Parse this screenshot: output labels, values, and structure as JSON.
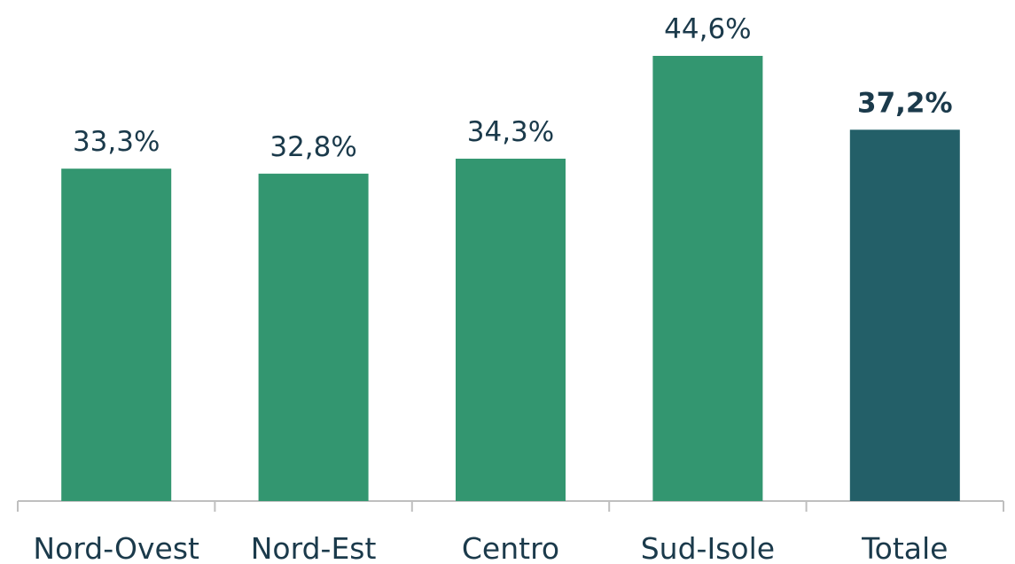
{
  "chart_data": {
    "type": "bar",
    "categories": [
      "Nord-Ovest",
      "Nord-Est",
      "Centro",
      "Sud-Isole",
      "Totale"
    ],
    "values": [
      33.3,
      32.8,
      34.3,
      44.6,
      37.2
    ],
    "value_labels": [
      "33,3%",
      "32,8%",
      "34,3%",
      "44,6%",
      "37,2%"
    ],
    "colors": [
      "#339670",
      "#339670",
      "#339670",
      "#339670",
      "#235f68"
    ],
    "value_label_weights": [
      "normal",
      "normal",
      "normal",
      "normal",
      "bold"
    ]
  }
}
